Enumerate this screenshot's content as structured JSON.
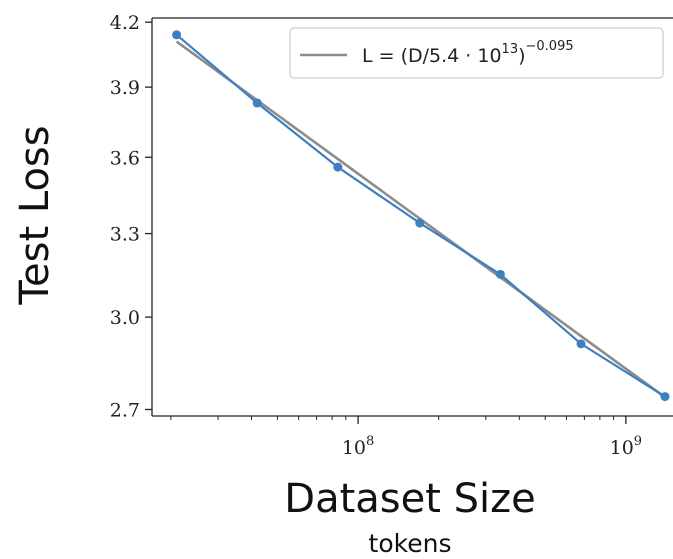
{
  "chart_data": {
    "type": "line",
    "title": "",
    "xlabel": "Dataset Size",
    "xlabel_sub": "tokens",
    "ylabel": "Test Loss",
    "x_scale": "log",
    "y_scale": "log",
    "xlim": [
      17000000,
      1500000000
    ],
    "ylim": [
      2.68,
      4.22
    ],
    "x_ticks": [
      {
        "value": 100000000,
        "base": "10",
        "exp": "8"
      },
      {
        "value": 1000000000,
        "base": "10",
        "exp": "9"
      }
    ],
    "y_ticks": [
      {
        "value": 2.7,
        "label": "2.7"
      },
      {
        "value": 3.0,
        "label": "3.0"
      },
      {
        "value": 3.3,
        "label": "3.3"
      },
      {
        "value": 3.6,
        "label": "3.6"
      },
      {
        "value": 3.9,
        "label": "3.9"
      },
      {
        "value": 4.2,
        "label": "4.2"
      }
    ],
    "grid": false,
    "legend_position": "top-right",
    "series": [
      {
        "kind": "fit",
        "color": "#8c8c8c",
        "x": [
          21000000,
          1400000000
        ],
        "y": [
          4.108,
          2.738
        ]
      },
      {
        "kind": "data",
        "color": "#3d7fbf",
        "x": [
          21000000,
          42000000,
          84000000,
          170000000,
          340000000,
          680000000,
          1400000000
        ],
        "y": [
          4.14,
          3.83,
          3.56,
          3.34,
          3.15,
          2.91,
          2.74
        ]
      }
    ],
    "legend": {
      "prefix": "L = (D/5.4 · 10",
      "exp13": "13",
      "close": ")",
      "exponent": "−0.095"
    }
  },
  "colors": {
    "axis": "#222222",
    "fit_line": "#8c8c8c",
    "data_line": "#3d7fbf",
    "legend_border": "#cccccc"
  }
}
